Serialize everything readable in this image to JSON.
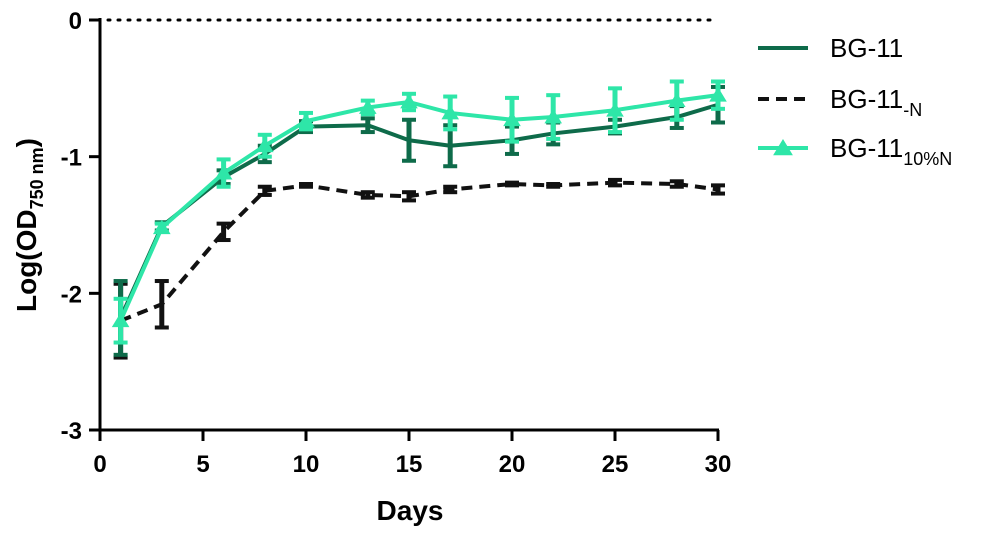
{
  "chart_data": {
    "type": "line",
    "title": "",
    "xlabel": "Days",
    "ylabel_main": "Log(OD",
    "ylabel_sub": "750 nm",
    "ylabel_close": ")",
    "xlim": [
      0,
      30
    ],
    "ylim": [
      -3,
      0
    ],
    "xticks": [
      0,
      5,
      10,
      15,
      20,
      25,
      30
    ],
    "yticks": [
      0,
      -1,
      -2,
      -3
    ],
    "ytick_labels": [
      "0",
      "-1",
      "-2",
      "-3"
    ],
    "reference_line": {
      "y": 0,
      "style": "dotted"
    },
    "legend_position": "top-right",
    "series": [
      {
        "name": "BG-11",
        "name_sub": "",
        "color": "#0e6b4a",
        "style": "solid",
        "marker": "none",
        "x": [
          1,
          3,
          6,
          8,
          10,
          13,
          15,
          17,
          20,
          22,
          25,
          28,
          30
        ],
        "y": [
          -2.18,
          -1.51,
          -1.15,
          -0.98,
          -0.78,
          -0.77,
          -0.88,
          -0.92,
          -0.88,
          -0.83,
          -0.78,
          -0.71,
          -0.62
        ],
        "err": [
          0.27,
          0.03,
          0.05,
          0.06,
          0.04,
          0.05,
          0.15,
          0.15,
          0.1,
          0.08,
          0.05,
          0.08,
          0.13
        ]
      },
      {
        "name": "BG-11",
        "name_sub": "-N",
        "color": "#111111",
        "style": "dashed",
        "marker": "none",
        "x": [
          1,
          3,
          6,
          8,
          10,
          13,
          15,
          17,
          20,
          22,
          25,
          28,
          30
        ],
        "y": [
          -2.2,
          -2.08,
          -1.55,
          -1.25,
          -1.21,
          -1.28,
          -1.29,
          -1.24,
          -1.2,
          -1.21,
          -1.19,
          -1.2,
          -1.24
        ],
        "err": [
          0.27,
          0.17,
          0.06,
          0.03,
          0.01,
          0.02,
          0.03,
          0.02,
          0.01,
          0.01,
          0.02,
          0.02,
          0.03
        ]
      },
      {
        "name": "BG-11",
        "name_sub": "10%N",
        "color": "#2ee6a8",
        "style": "solid",
        "marker": "triangle",
        "x": [
          1,
          3,
          6,
          8,
          10,
          13,
          15,
          17,
          20,
          22,
          25,
          28,
          30
        ],
        "y": [
          -2.2,
          -1.52,
          -1.12,
          -0.92,
          -0.74,
          -0.64,
          -0.6,
          -0.68,
          -0.73,
          -0.71,
          -0.66,
          -0.59,
          -0.55
        ],
        "err": [
          0.16,
          0.03,
          0.1,
          0.08,
          0.06,
          0.05,
          0.06,
          0.12,
          0.16,
          0.16,
          0.16,
          0.14,
          0.1
        ]
      }
    ]
  }
}
